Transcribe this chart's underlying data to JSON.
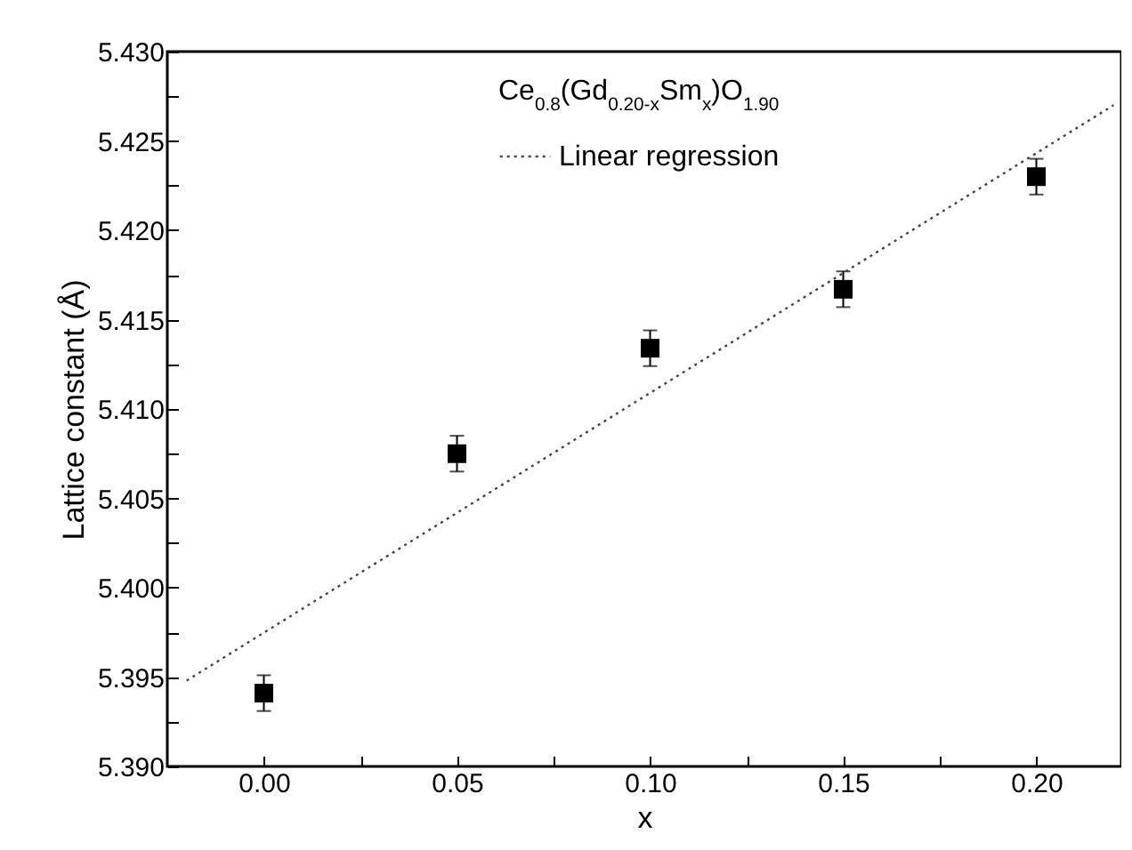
{
  "chart_data": {
    "type": "scatter",
    "xlabel": "x",
    "ylabel": "Lattice constant (Å)",
    "legend_title": "Ce$_{0.8}$(Gd$_{0.20-x}$Sm$_{x}$)O$_{1.90}$",
    "legend": "top",
    "x": [
      0,
      0.05,
      0.1,
      0.15,
      0.2
    ],
    "series": [
      {
        "type": "scatter",
        "color": "#000000",
        "marker": "square",
        "values": [
          5.3941,
          5.4075,
          5.4134,
          5.4167,
          5.423
        ],
        "errors": [
          0.001,
          0.001,
          0.001,
          0.001,
          0.001
        ]
      },
      {
        "type": "line",
        "name": "Linear regression",
        "color": "#444444",
        "line_style": "dotted",
        "x": [
          -0.02,
          0.22
        ],
        "values": [
          5.3948,
          5.427
        ]
      }
    ],
    "xlim": [
      -0.025,
      0.222
    ],
    "ylim": [
      5.39,
      5.43
    ],
    "xticks": [
      {
        "value": 0,
        "label": "0.00"
      },
      {
        "value": 0.025,
        "label": null
      },
      {
        "value": 0.05,
        "label": "0.05"
      },
      {
        "value": 0.075,
        "label": null
      },
      {
        "value": 0.1,
        "label": "0.10"
      },
      {
        "value": 0.125,
        "label": null
      },
      {
        "value": 0.15,
        "label": "0.15"
      },
      {
        "value": 0.175,
        "label": null
      },
      {
        "value": 0.2,
        "label": "0.20"
      }
    ],
    "yticks": [
      {
        "value": 5.39,
        "label": "5.390"
      },
      {
        "value": 5.3925,
        "label": null
      },
      {
        "value": 5.395,
        "label": "5.395"
      },
      {
        "value": 5.3975,
        "label": null
      },
      {
        "value": 5.4,
        "label": "5.400"
      },
      {
        "value": 5.4025,
        "label": null
      },
      {
        "value": 5.405,
        "label": "5.405"
      },
      {
        "value": 5.4075,
        "label": null
      },
      {
        "value": 5.41,
        "label": "5.410"
      },
      {
        "value": 5.4125,
        "label": null
      },
      {
        "value": 5.415,
        "label": "5.415"
      },
      {
        "value": 5.4175,
        "label": null
      },
      {
        "value": 5.42,
        "label": "5.420"
      },
      {
        "value": 5.4225,
        "label": null
      },
      {
        "value": 5.425,
        "label": "5.425"
      },
      {
        "value": 5.4275,
        "label": null
      },
      {
        "value": 5.43,
        "label": "5.430"
      }
    ]
  }
}
